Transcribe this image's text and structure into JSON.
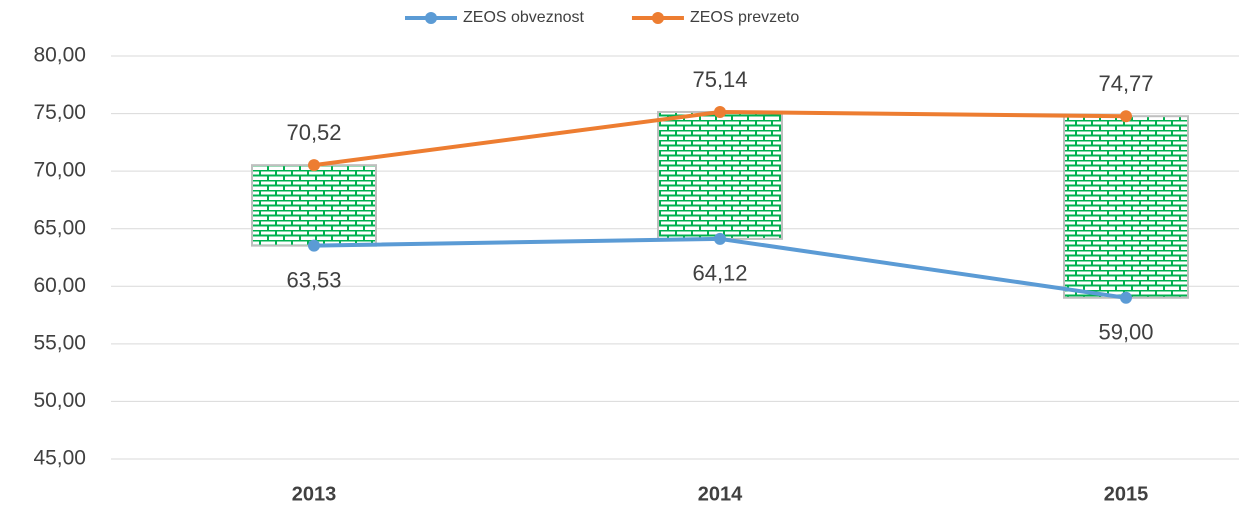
{
  "chart_data": {
    "type": "line",
    "categories": [
      "2013",
      "2014",
      "2015"
    ],
    "series": [
      {
        "name": "ZEOS obveznost",
        "color": "#5b9bd5",
        "values": [
          63.53,
          64.12,
          59.0
        ],
        "value_labels": [
          "63,53",
          "64,12",
          "59,00"
        ]
      },
      {
        "name": "ZEOS prevzeto",
        "color": "#ed7d31",
        "values": [
          70.52,
          75.14,
          74.77
        ],
        "value_labels": [
          "70,52",
          "75,14",
          "74,77"
        ]
      }
    ],
    "up_down_bars": true,
    "up_down_bar_color": "#00b050",
    "ylim": [
      45,
      80
    ],
    "yticks": [
      {
        "value": 45,
        "label": "45,00"
      },
      {
        "value": 50,
        "label": "50,00"
      },
      {
        "value": 55,
        "label": "55,00"
      },
      {
        "value": 60,
        "label": "60,00"
      },
      {
        "value": 65,
        "label": "65,00"
      },
      {
        "value": 70,
        "label": "70,00"
      },
      {
        "value": 75,
        "label": "75,00"
      },
      {
        "value": 80,
        "label": "80,00"
      }
    ],
    "grid": true,
    "legend": "top"
  }
}
